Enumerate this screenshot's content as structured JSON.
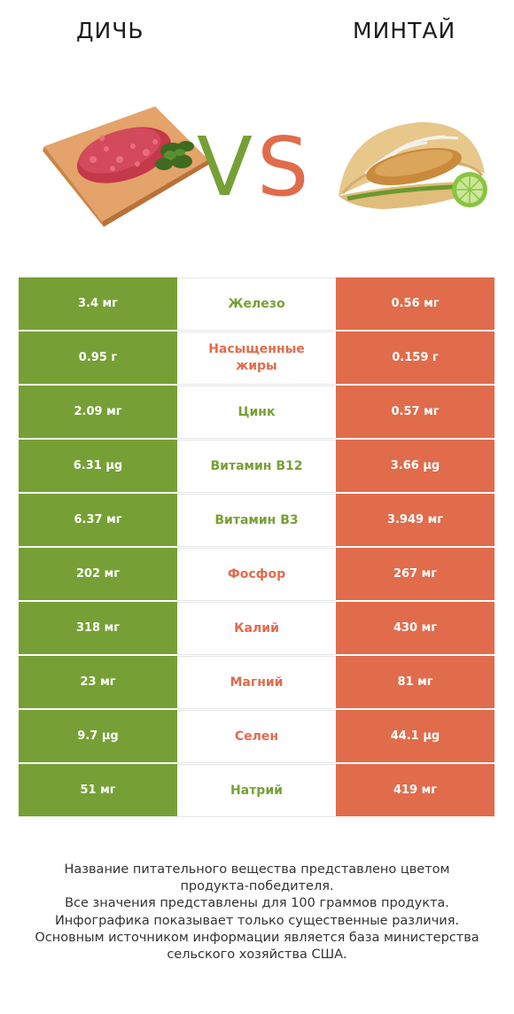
{
  "header": {
    "left_title": "ДИЧЬ",
    "right_title": "МИНТАЙ",
    "vs_left": "V",
    "vs_right": "S"
  },
  "colors": {
    "left_winner": "#76a035",
    "right_winner": "#e06c4c"
  },
  "rows": [
    {
      "left": "3.4 мг",
      "label": "Железо",
      "right": "0.56 мг",
      "winner": "left"
    },
    {
      "left": "0.95 г",
      "label": "Насыщенные жиры",
      "right": "0.159 г",
      "winner": "right"
    },
    {
      "left": "2.09 мг",
      "label": "Цинк",
      "right": "0.57 мг",
      "winner": "left"
    },
    {
      "left": "6.31 µg",
      "label": "Витамин B12",
      "right": "3.66 µg",
      "winner": "left"
    },
    {
      "left": "6.37 мг",
      "label": "Витамин B3",
      "right": "3.949 мг",
      "winner": "left"
    },
    {
      "left": "202 мг",
      "label": "Фосфор",
      "right": "267 мг",
      "winner": "right"
    },
    {
      "left": "318 мг",
      "label": "Калий",
      "right": "430 мг",
      "winner": "right"
    },
    {
      "left": "23 мг",
      "label": "Магний",
      "right": "81 мг",
      "winner": "right"
    },
    {
      "left": "9.7 µg",
      "label": "Селен",
      "right": "44.1 µg",
      "winner": "right"
    },
    {
      "left": "51 мг",
      "label": "Натрий",
      "right": "419 мг",
      "winner": "left"
    }
  ],
  "footer": {
    "lines": [
      "Название питательного вещества представлено цветом",
      "продукта-победителя.",
      "Все значения представлены для 100 граммов продукта.",
      "Инфографика показывает только существенные различия.",
      "Основным источником информации является база министерства",
      "сельского хозяйства США."
    ]
  }
}
